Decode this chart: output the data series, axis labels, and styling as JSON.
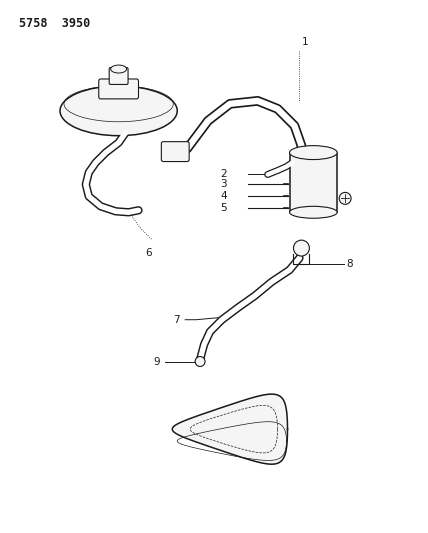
{
  "title": "5758  3950",
  "bg_color": "#ffffff",
  "line_color": "#1a1a1a",
  "label_color": "#1a1a1a",
  "label_fontsize": 7.5,
  "figsize": [
    4.28,
    5.33
  ],
  "dpi": 100,
  "title_fontsize": 8.5
}
